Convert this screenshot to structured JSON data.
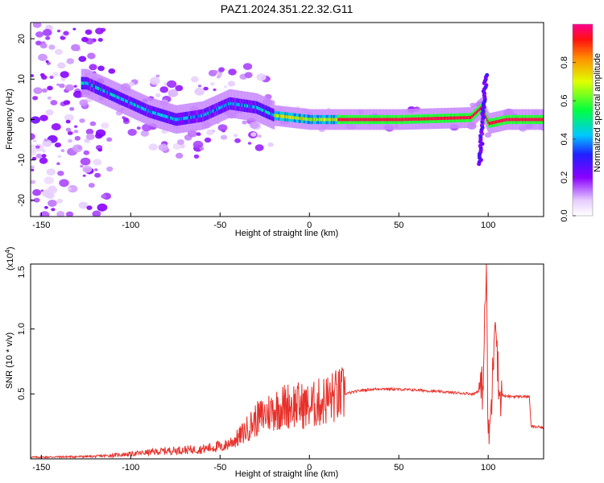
{
  "title": "PAZ1.2024.351.22.32.G11",
  "chart_data": [
    {
      "type": "heatmap",
      "xlabel": "Height of straight line (km)",
      "ylabel": "Frequency (Hz)",
      "xlim": [
        -156,
        131
      ],
      "ylim": [
        -24,
        24
      ],
      "x_ticks": [
        -150,
        -100,
        -50,
        0,
        50,
        100
      ],
      "y_ticks": [
        -20,
        -10,
        0,
        10,
        20
      ],
      "colorbar": {
        "label": "Normalized spectral amplitude",
        "range": [
          0,
          1
        ],
        "ticks": [
          "0.0",
          "0.2",
          "0.4",
          "0.6",
          "0.8"
        ],
        "ticks_values": [
          0,
          0.2,
          0.4,
          0.6,
          0.8
        ]
      },
      "ridge": [
        {
          "x": -125,
          "y": 9
        },
        {
          "x": -110,
          "y": 6
        },
        {
          "x": -100,
          "y": 4
        },
        {
          "x": -90,
          "y": 2
        },
        {
          "x": -75,
          "y": 0
        },
        {
          "x": -60,
          "y": 1
        },
        {
          "x": -45,
          "y": 4
        },
        {
          "x": -30,
          "y": 3
        },
        {
          "x": -20,
          "y": 1
        },
        {
          "x": 0,
          "y": 0
        },
        {
          "x": 10,
          "y": 0
        },
        {
          "x": 50,
          "y": 0
        },
        {
          "x": 90,
          "y": 0.5
        },
        {
          "x": 96,
          "y": 3
        },
        {
          "x": 100,
          "y": -1
        },
        {
          "x": 110,
          "y": 0
        },
        {
          "x": 131,
          "y": 0
        }
      ]
    },
    {
      "type": "line",
      "xlabel": "Height of straight line (km)",
      "ylabel": "SNR (10 * v/v)",
      "y_multiplier": "(x10",
      "y_exponent": "4",
      "y_multiplier_close": ")",
      "xlim": [
        -156,
        131
      ],
      "ylim": [
        0,
        1.5
      ],
      "x_ticks": [
        -150,
        -100,
        -50,
        0,
        50,
        100
      ],
      "y_ticks": [
        0.5,
        1.0,
        1.5
      ],
      "y_tick_labels": [
        "0.5",
        "1.0",
        "1.5"
      ],
      "color": "#e8302a",
      "envelope": [
        {
          "x": -156,
          "y": 0.01
        },
        {
          "x": -120,
          "y": 0.015
        },
        {
          "x": -100,
          "y": 0.03
        },
        {
          "x": -80,
          "y": 0.05
        },
        {
          "x": -60,
          "y": 0.06
        },
        {
          "x": -50,
          "y": 0.08
        },
        {
          "x": -40,
          "y": 0.16
        },
        {
          "x": -30,
          "y": 0.3
        },
        {
          "x": -20,
          "y": 0.38
        },
        {
          "x": -10,
          "y": 0.42
        },
        {
          "x": 0,
          "y": 0.4
        },
        {
          "x": 10,
          "y": 0.46
        },
        {
          "x": 20,
          "y": 0.5
        },
        {
          "x": 30,
          "y": 0.53
        },
        {
          "x": 40,
          "y": 0.54
        },
        {
          "x": 60,
          "y": 0.53
        },
        {
          "x": 80,
          "y": 0.51
        },
        {
          "x": 92,
          "y": 0.5
        },
        {
          "x": 97,
          "y": 0.55
        },
        {
          "x": 99,
          "y": 1.5
        },
        {
          "x": 100,
          "y": 0.1
        },
        {
          "x": 102,
          "y": 0.45
        },
        {
          "x": 104,
          "y": 1.2
        },
        {
          "x": 106,
          "y": 0.5
        },
        {
          "x": 110,
          "y": 0.48
        },
        {
          "x": 123,
          "y": 0.48
        },
        {
          "x": 124,
          "y": 0.25
        },
        {
          "x": 131,
          "y": 0.24
        }
      ]
    }
  ]
}
